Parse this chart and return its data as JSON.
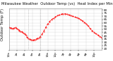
{
  "title": "Milwaukee Weather  Outdoor Temp (vs)  Heat Index per Minute (Last 24 Hours)",
  "bg_color": "#ffffff",
  "plot_bg_color": "#ffffff",
  "line_color": "#ff0000",
  "line_style": "--",
  "line_width": 0.7,
  "grid_color": "#bbbbbb",
  "y_ticks": [
    20,
    25,
    30,
    35,
    40,
    45,
    50,
    55,
    60,
    65,
    70,
    75,
    80
  ],
  "ylim": [
    18,
    82
  ],
  "xlim": [
    0,
    1439
  ],
  "vline1": 300,
  "vline2": 480,
  "x_data": [
    0,
    20,
    40,
    60,
    80,
    100,
    120,
    140,
    160,
    180,
    200,
    220,
    240,
    260,
    280,
    300,
    320,
    340,
    360,
    380,
    400,
    420,
    440,
    460,
    480,
    510,
    540,
    570,
    600,
    630,
    660,
    690,
    720,
    750,
    780,
    810,
    840,
    870,
    900,
    930,
    960,
    990,
    1020,
    1050,
    1080,
    1110,
    1140,
    1170,
    1200,
    1230,
    1260,
    1290,
    1320,
    1350,
    1380,
    1410,
    1439
  ],
  "y_data": [
    53,
    52,
    52,
    51,
    52,
    53,
    51,
    50,
    48,
    47,
    46,
    44,
    43,
    41,
    38,
    36,
    35,
    34,
    33,
    33,
    34,
    35,
    36,
    37,
    38,
    42,
    47,
    53,
    58,
    62,
    65,
    67,
    69,
    71,
    72,
    73,
    74,
    74,
    73,
    72,
    71,
    70,
    69,
    68,
    67,
    65,
    63,
    61,
    58,
    55,
    51,
    48,
    45,
    43,
    41,
    39,
    37
  ],
  "title_fontsize": 3.8,
  "tick_fontsize": 3.0,
  "marker": ".",
  "marker_size": 0.8,
  "left_label": "Outdoor Temp (F)"
}
